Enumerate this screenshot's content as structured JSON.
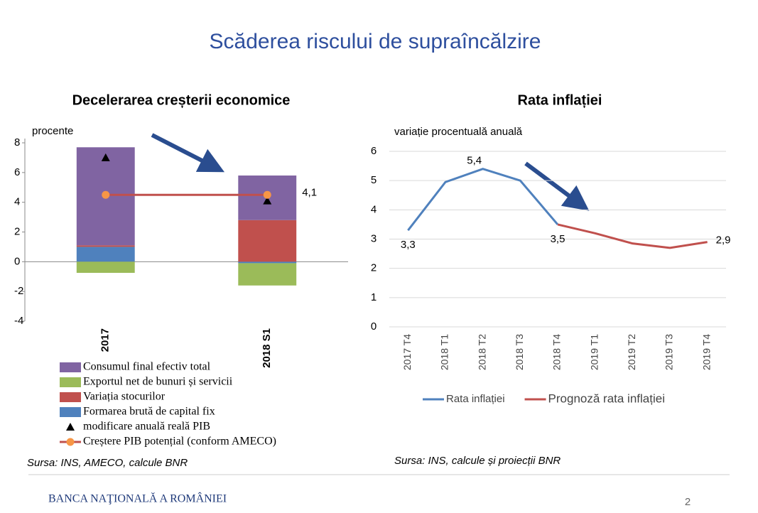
{
  "slide": {
    "title": "Scăderea riscului de supraîncălzire",
    "footer": "BANCA NAŢIONALĂ A ROMÂNIEI",
    "page": "2"
  },
  "chart_data": [
    {
      "type": "bar",
      "stacked": true,
      "title": "Decelerarea creșterii economice",
      "y_label": "procente",
      "categories": [
        "2017",
        "2018 S1"
      ],
      "series": [
        {
          "name": "Consumul final  efectiv total",
          "type": "bar",
          "color": "#8064a2",
          "values": [
            6.6,
            3.0
          ]
        },
        {
          "name": "Exportul net de bunuri și servicii",
          "type": "bar",
          "color": "#9bbb59",
          "values": [
            -0.75,
            -1.5
          ]
        },
        {
          "name": "Variația stocurilor",
          "type": "bar",
          "color": "#c0504d",
          "values": [
            0.1,
            2.8
          ]
        },
        {
          "name": "Formarea brută de capital fix",
          "type": "bar",
          "color": "#4f81bd",
          "values": [
            1.0,
            -0.1
          ]
        },
        {
          "name": "modificare anuală reală PIB",
          "type": "marker",
          "color": "#000000",
          "values": [
            7.0,
            4.1
          ],
          "value_labels": [
            null,
            "4,1"
          ]
        },
        {
          "name": "Creștere PIB potențial (conform AMECO)",
          "type": "line",
          "color": "#c0504d",
          "marker_color": "#f79646",
          "values": [
            4.5,
            4.5
          ]
        }
      ],
      "ylim": [
        -4,
        8
      ],
      "yticks": [
        -4,
        -2,
        0,
        2,
        4,
        6,
        8
      ],
      "grid": false,
      "source": "Sursa: INS, AMECO, calcule BNR"
    },
    {
      "type": "line",
      "title": "Rata inflației",
      "y_label": "variație procentuală anuală",
      "categories": [
        "2017 T4",
        "2018 T1",
        "2018 T2",
        "2018 T3",
        "2018 T4",
        "2019 T1",
        "2019 T2",
        "2019 T3",
        "2019 T4"
      ],
      "series": [
        {
          "name": "Rata inflației",
          "type": "line",
          "color": "#4f81bd",
          "values": [
            3.3,
            4.95,
            5.4,
            5.0,
            3.5,
            null,
            null,
            null,
            null
          ],
          "value_labels": [
            "3,3",
            null,
            "5,4",
            null,
            "3,5",
            null,
            null,
            null,
            null
          ]
        },
        {
          "name": "Prognoză rata inflației",
          "type": "line",
          "color": "#c0504d",
          "values": [
            null,
            null,
            null,
            null,
            3.5,
            3.2,
            2.85,
            2.7,
            2.9
          ],
          "value_labels": [
            null,
            null,
            null,
            null,
            null,
            null,
            null,
            null,
            "2,9"
          ]
        }
      ],
      "ylim": [
        0,
        6
      ],
      "yticks": [
        0,
        1,
        2,
        3,
        4,
        5,
        6
      ],
      "grid": true,
      "source": "Sursa: INS, calcule și proiecții BNR"
    }
  ]
}
